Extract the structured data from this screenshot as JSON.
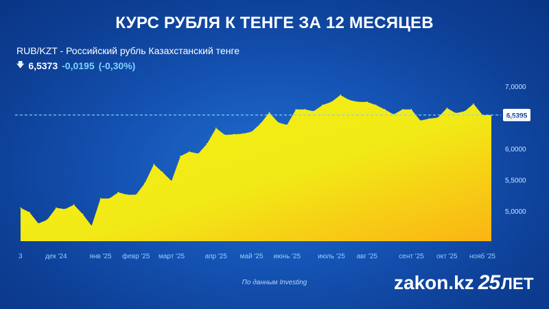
{
  "header": {
    "title": "КУРС РУБЛЯ К ТЕНГЕ ЗА 12 МЕСЯЦЕВ"
  },
  "instrument": {
    "pair_label": "RUB/KZT - Российский рубль Казахстанский тенге",
    "price": "6,5373",
    "change": "-0,0195",
    "change_pct": "(-0,30%)",
    "direction_icon": "arrow-down-icon"
  },
  "footer": {
    "source": "По данным Investing",
    "brand_name": "zakon.kz",
    "brand_age": "25",
    "brand_suffix": "ЛЕТ"
  },
  "colors": {
    "background": "#1553b4",
    "area_top": "#f4ef12",
    "area_bottom": "#fbb414",
    "reference_line": "#7fd0ff",
    "tick_text": "#8fd0ff"
  },
  "chart_data": {
    "type": "area",
    "title": "КУРС РУБЛЯ К ТЕНГЕ ЗА 12 МЕСЯЦЕВ",
    "series": [
      {
        "name": "RUB/KZT",
        "x": [
          "2024-11-03",
          "2024-11-10",
          "2024-11-17",
          "2024-11-24",
          "2024-12-01",
          "2024-12-08",
          "2024-12-15",
          "2024-12-22",
          "2024-12-29",
          "2025-01-05",
          "2025-01-12",
          "2025-01-19",
          "2025-01-26",
          "2025-02-02",
          "2025-02-09",
          "2025-02-16",
          "2025-02-23",
          "2025-03-02",
          "2025-03-09",
          "2025-03-16",
          "2025-03-23",
          "2025-03-30",
          "2025-04-06",
          "2025-04-13",
          "2025-04-20",
          "2025-04-27",
          "2025-05-04",
          "2025-05-11",
          "2025-05-18",
          "2025-05-25",
          "2025-06-01",
          "2025-06-08",
          "2025-06-15",
          "2025-06-22",
          "2025-06-29",
          "2025-07-06",
          "2025-07-13",
          "2025-07-20",
          "2025-07-27",
          "2025-08-03",
          "2025-08-10",
          "2025-08-17",
          "2025-08-24",
          "2025-08-31",
          "2025-09-07",
          "2025-09-14",
          "2025-09-21",
          "2025-09-28",
          "2025-10-05",
          "2025-10-12",
          "2025-10-19",
          "2025-10-26",
          "2025-11-02",
          "2025-11-09"
        ],
        "values": [
          5.05,
          4.98,
          4.8,
          4.86,
          5.05,
          5.03,
          5.1,
          4.95,
          4.76,
          5.2,
          5.2,
          5.3,
          5.26,
          5.26,
          5.45,
          5.75,
          5.62,
          5.48,
          5.88,
          5.95,
          5.92,
          6.08,
          6.33,
          6.22,
          6.23,
          6.24,
          6.27,
          6.4,
          6.58,
          6.42,
          6.38,
          6.63,
          6.63,
          6.6,
          6.7,
          6.75,
          6.86,
          6.78,
          6.75,
          6.75,
          6.7,
          6.63,
          6.55,
          6.63,
          6.63,
          6.45,
          6.48,
          6.5,
          6.65,
          6.57,
          6.6,
          6.72,
          6.54,
          6.54
        ]
      }
    ],
    "current_value": 6.5395,
    "current_value_label": "6,5395",
    "ylim": [
      4.5,
      7.05
    ],
    "y_ticks": [
      {
        "value": 5.0,
        "label": "5,0000"
      },
      {
        "value": 5.5,
        "label": "5,5000"
      },
      {
        "value": 6.0,
        "label": "6,0000"
      },
      {
        "value": 6.5,
        "label": "6,5000"
      },
      {
        "value": 7.0,
        "label": "7,0000"
      }
    ],
    "x_ticks": [
      {
        "date": "2024-11-03",
        "label": "3"
      },
      {
        "date": "2024-12-01",
        "label": "дек '24"
      },
      {
        "date": "2025-01-05",
        "label": "янв '25"
      },
      {
        "date": "2025-02-02",
        "label": "февр '25"
      },
      {
        "date": "2025-03-02",
        "label": "март '25"
      },
      {
        "date": "2025-04-06",
        "label": "апр '25"
      },
      {
        "date": "2025-05-04",
        "label": "май '25"
      },
      {
        "date": "2025-06-01",
        "label": "июнь '25"
      },
      {
        "date": "2025-07-06",
        "label": "июль '25"
      },
      {
        "date": "2025-08-03",
        "label": "авг '25"
      },
      {
        "date": "2025-09-07",
        "label": "сент '25"
      },
      {
        "date": "2025-10-05",
        "label": "окт '25"
      },
      {
        "date": "2025-11-02",
        "label": "нояб '25"
      }
    ],
    "grid": false
  }
}
